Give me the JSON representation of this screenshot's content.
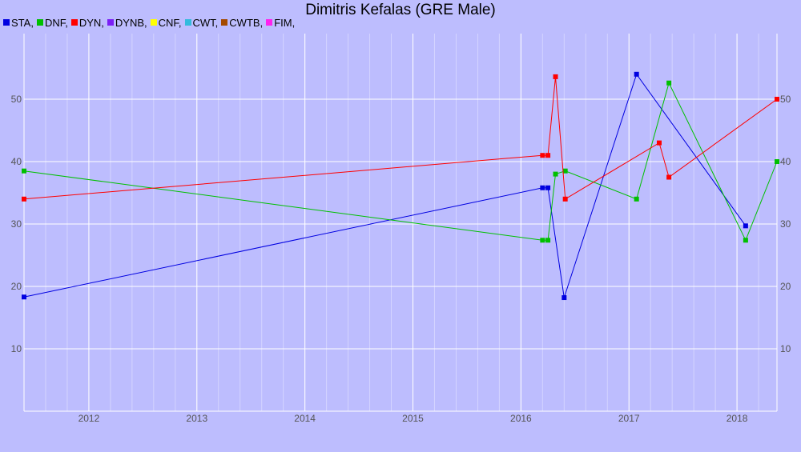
{
  "chart_data": {
    "type": "line",
    "title": "Dimitris Kefalas (GRE Male)",
    "xlabel": "",
    "ylabel": "",
    "x_ticks": [
      "2012",
      "2013",
      "2014",
      "2015",
      "2016",
      "2017",
      "2018"
    ],
    "y_ticks": [
      10,
      20,
      30,
      40,
      50
    ],
    "ylim": [
      0,
      60
    ],
    "grid": true,
    "legend_position": "top-left",
    "legend": [
      {
        "name": "STA",
        "color": "#0000e0"
      },
      {
        "name": "DNF",
        "color": "#00c000"
      },
      {
        "name": "DYN",
        "color": "#ff0000"
      },
      {
        "name": "DYNB",
        "color": "#7b1ef5"
      },
      {
        "name": "CNF",
        "color": "#ffff00"
      },
      {
        "name": "CWT",
        "color": "#33bbdd"
      },
      {
        "name": "CWTB",
        "color": "#a44a00"
      },
      {
        "name": "FIM",
        "color": "#ff22ee"
      }
    ],
    "series": [
      {
        "name": "STA",
        "color": "#0000e0",
        "points": [
          [
            2011.4,
            18.3
          ],
          [
            2016.2,
            35.8
          ],
          [
            2016.25,
            35.8
          ],
          [
            2016.4,
            18.2
          ],
          [
            2017.07,
            54
          ],
          [
            2018.08,
            29.7
          ]
        ]
      },
      {
        "name": "DNF",
        "color": "#00c000",
        "points": [
          [
            2011.4,
            38.5
          ],
          [
            2016.2,
            27.4
          ],
          [
            2016.25,
            27.4
          ],
          [
            2016.32,
            38
          ],
          [
            2016.41,
            38.5
          ],
          [
            2017.07,
            34
          ],
          [
            2017.37,
            52.6
          ],
          [
            2018.08,
            27.4
          ],
          [
            2018.37,
            40
          ]
        ]
      },
      {
        "name": "DYN",
        "color": "#ff0000",
        "points": [
          [
            2011.4,
            34
          ],
          [
            2016.2,
            41
          ],
          [
            2016.25,
            41
          ],
          [
            2016.32,
            53.6
          ],
          [
            2016.41,
            34
          ],
          [
            2017.28,
            43
          ],
          [
            2017.37,
            37.5
          ],
          [
            2018.37,
            50
          ]
        ]
      }
    ]
  }
}
